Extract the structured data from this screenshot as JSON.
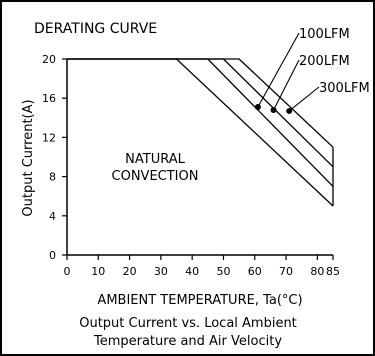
{
  "chart_data": {
    "type": "line",
    "title": "DERATING CURVE",
    "xlabel": "AMBIENT TEMPERATURE, Ta(°C)",
    "ylabel": "Output Current(A)",
    "caption_line1": "Output Current vs. Local Ambient",
    "caption_line2": "Temperature and Air Velocity",
    "region_label_line1": "NATURAL",
    "region_label_line2": "CONVECTION",
    "xlim": [
      0,
      85
    ],
    "ylim": [
      0,
      20
    ],
    "x_ticks": [
      0,
      10,
      20,
      30,
      40,
      50,
      60,
      70,
      80,
      85
    ],
    "y_ticks": [
      0,
      4,
      8,
      12,
      16,
      20
    ],
    "grid": false,
    "series": [
      {
        "values": [
          [
            0,
            20
          ],
          [
            35,
            20
          ],
          [
            85,
            5
          ]
        ]
      },
      {
        "name": "100LFM",
        "marker": [
          61,
          15.1
        ],
        "values": [
          [
            0,
            20
          ],
          [
            45,
            20
          ],
          [
            85,
            7
          ]
        ]
      },
      {
        "name": "200LFM",
        "marker": [
          66,
          14.8
        ],
        "values": [
          [
            0,
            20
          ],
          [
            50,
            20
          ],
          [
            85,
            9
          ]
        ]
      },
      {
        "name": "300LFM",
        "marker": [
          71,
          14.7
        ],
        "values": [
          [
            0,
            20
          ],
          [
            55,
            20
          ],
          [
            85,
            11
          ]
        ]
      }
    ]
  }
}
